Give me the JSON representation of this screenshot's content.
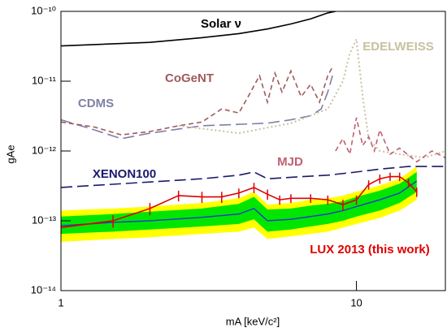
{
  "chart_data": {
    "type": "line",
    "xlabel": "mA [keV/c²]",
    "ylabel": "gAe",
    "xscale": "log",
    "yscale": "log",
    "xlim": [
      1,
      20
    ],
    "ylim": [
      1e-14,
      1e-10
    ],
    "xticks": [
      1,
      10
    ],
    "yticks": [
      {
        "value": 1e-14,
        "label": "10⁻¹⁴"
      },
      {
        "value": 1e-13,
        "label": "10⁻¹³"
      },
      {
        "value": 1e-12,
        "label": "10⁻¹²"
      },
      {
        "value": 1e-11,
        "label": "10⁻¹¹"
      },
      {
        "value": 1e-10,
        "label": "10⁻¹⁰"
      }
    ],
    "bands": [
      {
        "color": "#ffff00",
        "x": [
          1,
          1.5,
          2,
          3,
          4,
          4.5,
          5,
          6,
          7,
          8,
          9,
          10,
          12,
          14,
          16
        ],
        "lower": [
          5e-14,
          5.5e-14,
          5.8e-14,
          6.5e-14,
          7e-14,
          8e-14,
          5.5e-14,
          6e-14,
          6.5e-14,
          7e-14,
          8e-14,
          9e-14,
          1.1e-13,
          1.4e-13,
          2e-13
        ],
        "upper": [
          1.4e-13,
          1.5e-13,
          1.6e-13,
          1.8e-13,
          2.1e-13,
          2.6e-13,
          1.7e-13,
          1.8e-13,
          2e-13,
          2.1e-13,
          2.3e-13,
          2.6e-13,
          3.2e-13,
          4e-13,
          6e-13
        ]
      },
      {
        "color": "#00e600",
        "x": [
          1,
          1.5,
          2,
          3,
          4,
          4.5,
          5,
          6,
          7,
          8,
          9,
          10,
          12,
          14,
          16
        ],
        "lower": [
          6.5e-14,
          7e-14,
          7.5e-14,
          8.3e-14,
          9e-14,
          1.05e-13,
          7e-14,
          7.5e-14,
          8.3e-14,
          9e-14,
          1e-13,
          1.15e-13,
          1.4e-13,
          1.8e-13,
          2.6e-13
        ],
        "upper": [
          1.15e-13,
          1.25e-13,
          1.35e-13,
          1.5e-13,
          1.75e-13,
          2.2e-13,
          1.45e-13,
          1.5e-13,
          1.65e-13,
          1.75e-13,
          1.9e-13,
          2.2e-13,
          2.7e-13,
          3.4e-13,
          5e-13
        ]
      }
    ],
    "median": {
      "color": "#2040c0",
      "x": [
        1,
        1.5,
        2,
        3,
        4,
        4.5,
        5,
        6,
        7,
        8,
        9,
        10,
        12,
        14,
        16
      ],
      "values": [
        8.5e-14,
        9.5e-14,
        1e-13,
        1.12e-13,
        1.25e-13,
        1.5e-13,
        1e-13,
        1.05e-13,
        1.15e-13,
        1.25e-13,
        1.4e-13,
        1.6e-13,
        2e-13,
        2.5e-13,
        3.7e-13
      ]
    },
    "series": [
      {
        "name": "Solar ν",
        "color": "#000000",
        "style": "solid",
        "x": [
          1,
          2,
          3,
          4,
          5,
          6,
          7,
          8,
          8.5
        ],
        "values": [
          3.2e-11,
          3.6e-11,
          4.2e-11,
          4.8e-11,
          5.6e-11,
          6.6e-11,
          7.8e-11,
          9.5e-11,
          1e-10
        ]
      },
      {
        "name": "CDMS",
        "color": "#7f7fa8",
        "style": "longdash",
        "x": [
          1,
          1.3,
          1.6,
          2,
          3,
          5,
          6,
          7,
          7.6,
          8,
          8.3
        ],
        "values": [
          2.8e-12,
          2e-12,
          1.5e-12,
          1.8e-12,
          2.3e-12,
          2.5e-12,
          2.8e-12,
          3.2e-12,
          4e-12,
          7e-12,
          1.2e-11
        ]
      },
      {
        "name": "CoGeNT",
        "color": "#a05a5a",
        "style": "dashed",
        "x": [
          1,
          1.3,
          1.6,
          2,
          2.5,
          3,
          3.5,
          4,
          4.3,
          4.7,
          5,
          5.3,
          5.6,
          6,
          6.5,
          7,
          7.5,
          8,
          8.3
        ],
        "values": [
          2.6e-12,
          2.2e-12,
          1.7e-12,
          1.9e-12,
          2.3e-12,
          2.6e-12,
          4e-12,
          3.5e-12,
          6e-12,
          1.2e-11,
          5e-12,
          1.3e-11,
          7e-12,
          1.4e-11,
          6e-12,
          9e-12,
          5e-12,
          1.2e-11,
          1.6e-11
        ]
      },
      {
        "name": "EDELWEISS",
        "color": "#c8c0a0",
        "style": "dotted",
        "x": [
          2.5,
          4,
          6,
          8,
          9,
          9.5,
          10,
          10.5,
          11,
          12,
          14,
          17,
          20
        ],
        "values": [
          2.3e-12,
          1.8e-12,
          2.5e-12,
          4e-12,
          1e-11,
          2.5e-11,
          4e-11,
          6e-12,
          1.5e-12,
          1e-12,
          9e-13,
          8e-13,
          1e-12
        ]
      },
      {
        "name": "MJD",
        "color": "#c06070",
        "style": "dashed",
        "x": [
          8.5,
          9,
          9.5,
          10,
          10.5,
          11,
          11.5,
          12,
          13,
          14,
          16,
          18,
          20
        ],
        "values": [
          1e-12,
          1.5e-12,
          9e-13,
          3e-12,
          1.2e-12,
          1.6e-12,
          1e-12,
          2e-12,
          9e-13,
          1.1e-12,
          7e-13,
          1e-12,
          8e-13
        ]
      },
      {
        "name": "XENON100",
        "color": "#1a1a6e",
        "style": "longdash",
        "x": [
          1,
          2,
          3,
          4,
          4.5,
          5,
          6,
          8,
          10,
          12,
          15,
          20
        ],
        "values": [
          3e-13,
          3.6e-13,
          4e-13,
          4.5e-13,
          5e-13,
          4e-13,
          4.2e-13,
          4.5e-13,
          5e-13,
          5.5e-13,
          6e-13,
          6e-13
        ]
      },
      {
        "name": "LUX 2013 (this work)",
        "color": "#e00000",
        "style": "solid",
        "x": [
          1,
          1.5,
          2,
          2.5,
          3,
          3.5,
          4,
          4.5,
          5,
          5.5,
          6,
          7,
          8,
          9,
          10,
          11,
          12,
          13,
          14,
          15,
          16
        ],
        "values": [
          8e-14,
          1e-13,
          1.5e-13,
          2.3e-13,
          2.2e-13,
          2.2e-13,
          2.5e-13,
          3e-13,
          2.4e-13,
          2e-13,
          2.1e-13,
          2.1e-13,
          2e-13,
          1.7e-13,
          2e-13,
          3.3e-13,
          4e-13,
          4.3e-13,
          4.3e-13,
          3.5e-13,
          2.6e-13
        ],
        "errors": [
          1.5e-14,
          2e-14,
          3e-14,
          4e-14,
          4e-14,
          4e-14,
          4e-14,
          5e-14,
          4e-14,
          3e-14,
          3e-14,
          3e-14,
          3e-14,
          3e-14,
          3e-14,
          5e-14,
          6e-14,
          6e-14,
          6e-14,
          5e-14,
          4e-14
        ]
      }
    ]
  }
}
